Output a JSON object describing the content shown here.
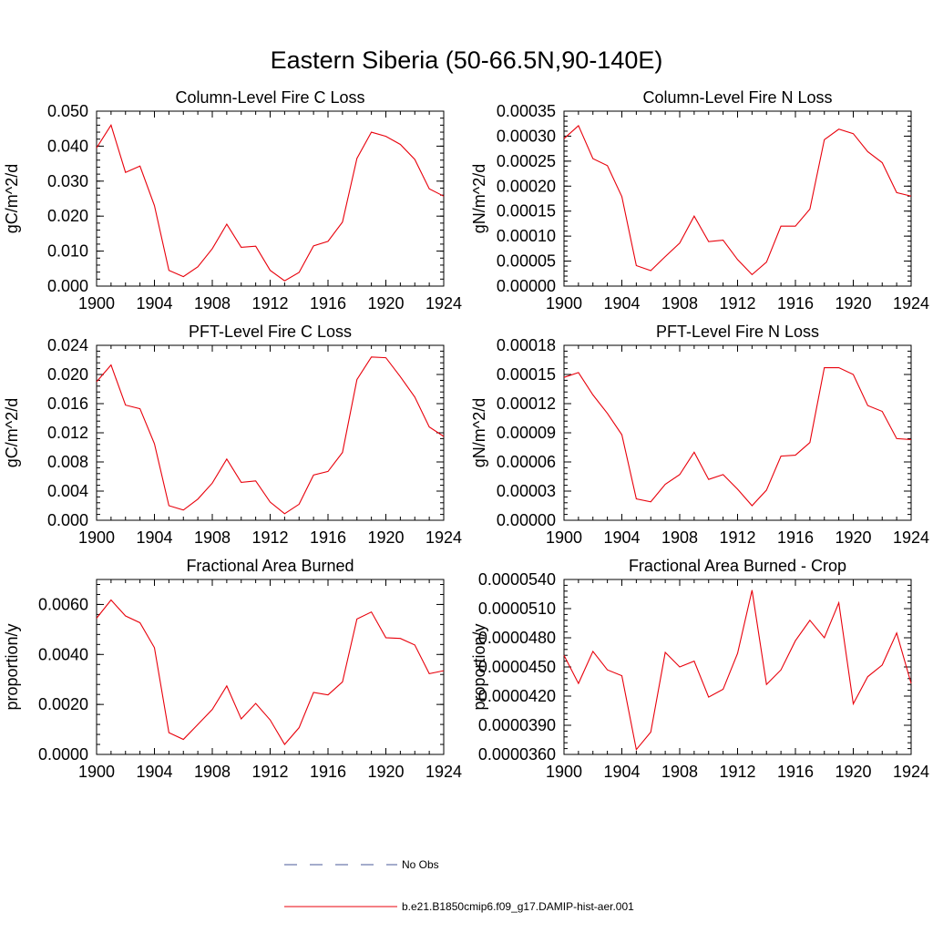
{
  "figure": {
    "title": "Eastern Siberia (50-66.5N,90-140E)"
  },
  "legend": {
    "items": [
      {
        "label": "No Obs",
        "color": "#4a5a9a",
        "style": "dashed"
      },
      {
        "label": "b.e21.B1850cmip6.f09_g17.DAMIP-hist-aer.001",
        "color": "#e8000b",
        "style": "solid"
      }
    ]
  },
  "chart_data": [
    {
      "type": "line",
      "title": "Column-Level Fire C Loss",
      "ylabel": "gC/m^2/d",
      "xlabel": "",
      "xlim": [
        1900,
        1924
      ],
      "ylim": [
        0.0,
        0.05
      ],
      "xticks": [
        1900,
        1904,
        1908,
        1912,
        1916,
        1920,
        1924
      ],
      "yticks": [
        "0.000",
        "0.010",
        "0.020",
        "0.030",
        "0.040",
        "0.050"
      ],
      "color": "#e8000b",
      "x": [
        1900,
        1901,
        1902,
        1903,
        1904,
        1905,
        1906,
        1907,
        1908,
        1909,
        1910,
        1911,
        1912,
        1913,
        1914,
        1915,
        1916,
        1917,
        1918,
        1919,
        1920,
        1921,
        1922,
        1923,
        1924
      ],
      "values": [
        0.0395,
        0.046,
        0.0325,
        0.0343,
        0.023,
        0.0045,
        0.0027,
        0.0055,
        0.0107,
        0.0177,
        0.0111,
        0.0114,
        0.0045,
        0.0015,
        0.0039,
        0.0115,
        0.0128,
        0.0183,
        0.0365,
        0.044,
        0.0428,
        0.0405,
        0.0362,
        0.0278,
        0.0257
      ]
    },
    {
      "type": "line",
      "title": "Column-Level Fire N Loss",
      "ylabel": "gN/m^2/d",
      "xlabel": "",
      "xlim": [
        1900,
        1924
      ],
      "ylim": [
        0.0,
        0.00035
      ],
      "xticks": [
        1900,
        1904,
        1908,
        1912,
        1916,
        1920,
        1924
      ],
      "yticks": [
        "0.00000",
        "0.00005",
        "0.00010",
        "0.00015",
        "0.00020",
        "0.00025",
        "0.00030",
        "0.00035"
      ],
      "color": "#e8000b",
      "x": [
        1900,
        1901,
        1902,
        1903,
        1904,
        1905,
        1906,
        1907,
        1908,
        1909,
        1910,
        1911,
        1912,
        1913,
        1914,
        1915,
        1916,
        1917,
        1918,
        1919,
        1920,
        1921,
        1922,
        1923,
        1924
      ],
      "values": [
        0.000295,
        0.000321,
        0.000255,
        0.000241,
        0.000179,
        4.1e-05,
        3.1e-05,
        5.9e-05,
        8.6e-05,
        0.00014,
        8.9e-05,
        9.2e-05,
        5.3e-05,
        2.3e-05,
        4.8e-05,
        0.00012,
        0.00012,
        0.000154,
        0.000293,
        0.000314,
        0.000305,
        0.000269,
        0.000247,
        0.000187,
        0.00018
      ]
    },
    {
      "type": "line",
      "title": "PFT-Level Fire C Loss",
      "ylabel": "gC/m^2/d",
      "xlabel": "",
      "xlim": [
        1900,
        1924
      ],
      "ylim": [
        0.0,
        0.024
      ],
      "xticks": [
        1900,
        1904,
        1908,
        1912,
        1916,
        1920,
        1924
      ],
      "yticks": [
        "0.000",
        "0.004",
        "0.008",
        "0.012",
        "0.016",
        "0.020",
        "0.024"
      ],
      "color": "#e8000b",
      "x": [
        1900,
        1901,
        1902,
        1903,
        1904,
        1905,
        1906,
        1907,
        1908,
        1909,
        1910,
        1911,
        1912,
        1913,
        1914,
        1915,
        1916,
        1917,
        1918,
        1919,
        1920,
        1921,
        1922,
        1923,
        1924
      ],
      "values": [
        0.019,
        0.0213,
        0.0158,
        0.0153,
        0.0105,
        0.002,
        0.0014,
        0.0029,
        0.0051,
        0.0084,
        0.0052,
        0.0054,
        0.0025,
        0.0009,
        0.0022,
        0.0062,
        0.0067,
        0.0093,
        0.0193,
        0.0224,
        0.0223,
        0.0197,
        0.0169,
        0.0128,
        0.0115
      ]
    },
    {
      "type": "line",
      "title": "PFT-Level Fire N Loss",
      "ylabel": "gN/m^2/d",
      "xlabel": "",
      "xlim": [
        1900,
        1924
      ],
      "ylim": [
        0.0,
        0.00018
      ],
      "xticks": [
        1900,
        1904,
        1908,
        1912,
        1916,
        1920,
        1924
      ],
      "yticks": [
        "0.00000",
        "0.00003",
        "0.00006",
        "0.00009",
        "0.00012",
        "0.00015",
        "0.00018"
      ],
      "color": "#e8000b",
      "x": [
        1900,
        1901,
        1902,
        1903,
        1904,
        1905,
        1906,
        1907,
        1908,
        1909,
        1910,
        1911,
        1912,
        1913,
        1914,
        1915,
        1916,
        1917,
        1918,
        1919,
        1920,
        1921,
        1922,
        1923,
        1924
      ],
      "values": [
        0.000147,
        0.000152,
        0.000129,
        0.00011,
        8.8e-05,
        2.2e-05,
        1.9e-05,
        3.7e-05,
        4.7e-05,
        7e-05,
        4.2e-05,
        4.7e-05,
        3.2e-05,
        1.5e-05,
        3.1e-05,
        6.6e-05,
        6.7e-05,
        8e-05,
        0.000157,
        0.000157,
        0.00015,
        0.000118,
        0.000112,
        8.4e-05,
        8.3e-05
      ]
    },
    {
      "type": "line",
      "title": "Fractional Area Burned",
      "ylabel": "proportion/y",
      "xlabel": "",
      "xlim": [
        1900,
        1924
      ],
      "ylim": [
        0.0,
        0.007
      ],
      "xticks": [
        1900,
        1904,
        1908,
        1912,
        1916,
        1920,
        1924
      ],
      "yticks": [
        "0.0000",
        "0.0020",
        "0.0040",
        "0.0060"
      ],
      "ytick_values": [
        0.0,
        0.002,
        0.004,
        0.006
      ],
      "color": "#e8000b",
      "x": [
        1900,
        1901,
        1902,
        1903,
        1904,
        1905,
        1906,
        1907,
        1908,
        1909,
        1910,
        1911,
        1912,
        1913,
        1914,
        1915,
        1916,
        1917,
        1918,
        1919,
        1920,
        1921,
        1922,
        1923,
        1924
      ],
      "values": [
        0.00545,
        0.00618,
        0.00554,
        0.00527,
        0.00427,
        0.00087,
        0.0006,
        0.0012,
        0.0018,
        0.00274,
        0.00142,
        0.00204,
        0.00138,
        0.0004,
        0.00107,
        0.00248,
        0.00238,
        0.0029,
        0.00542,
        0.0057,
        0.00467,
        0.00464,
        0.00438,
        0.00323,
        0.00335
      ]
    },
    {
      "type": "line",
      "title": "Fractional Area Burned - Crop",
      "ylabel": "proportion/y",
      "xlabel": "",
      "xlim": [
        1900,
        1924
      ],
      "ylim": [
        3.6e-05,
        5.4e-05
      ],
      "xticks": [
        1900,
        1904,
        1908,
        1912,
        1916,
        1920,
        1924
      ],
      "yticks": [
        "0.0000360",
        "0.0000390",
        "0.0000420",
        "0.0000450",
        "0.0000480",
        "0.0000510",
        "0.0000540"
      ],
      "color": "#e8000b",
      "x": [
        1900,
        1901,
        1902,
        1903,
        1904,
        1905,
        1906,
        1907,
        1908,
        1909,
        1910,
        1911,
        1912,
        1913,
        1914,
        1915,
        1916,
        1917,
        1918,
        1919,
        1920,
        1921,
        1922,
        1923,
        1924
      ],
      "values": [
        4.62e-05,
        4.33e-05,
        4.66e-05,
        4.47e-05,
        4.41e-05,
        3.65e-05,
        3.83e-05,
        4.65e-05,
        4.5e-05,
        4.56e-05,
        4.19e-05,
        4.27e-05,
        4.64e-05,
        5.29e-05,
        4.32e-05,
        4.47e-05,
        4.77e-05,
        4.98e-05,
        4.8e-05,
        5.16e-05,
        4.12e-05,
        4.4e-05,
        4.52e-05,
        4.85e-05,
        4.33e-05
      ]
    }
  ]
}
